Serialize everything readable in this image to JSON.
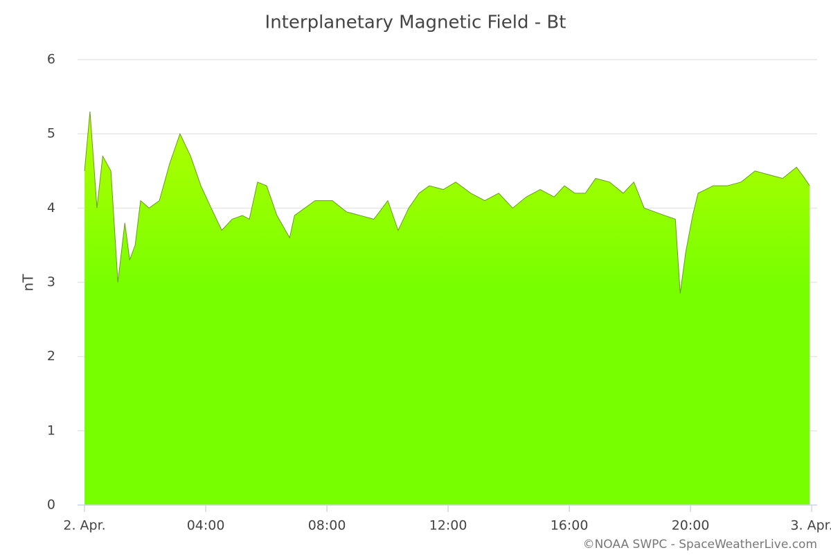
{
  "chart_data": {
    "type": "area",
    "title": "Interplanetary Magnetic Field - Bt",
    "y_label": "nT",
    "credits": "©NOAA SWPC - SpaceWeatherLive.com",
    "x": [
      0,
      0.18,
      0.41,
      0.6,
      0.87,
      1.1,
      1.33,
      1.49,
      1.67,
      1.85,
      2.13,
      2.47,
      2.81,
      3.15,
      3.5,
      3.84,
      4.18,
      4.53,
      4.87,
      5.21,
      5.44,
      5.71,
      6.01,
      6.35,
      6.77,
      6.93,
      7.27,
      7.61,
      8.18,
      8.64,
      9.1,
      9.55,
      10.01,
      10.35,
      10.7,
      11.04,
      11.38,
      11.84,
      12.25,
      12.75,
      13.21,
      13.67,
      14.13,
      14.58,
      15.04,
      15.5,
      15.84,
      16.18,
      16.53,
      16.87,
      17.33,
      17.78,
      18.13,
      18.47,
      18.81,
      19.15,
      19.5,
      19.66,
      19.84,
      20.07,
      20.25,
      20.75,
      21.21,
      21.67,
      22.13,
      22.58,
      23.04,
      23.5,
      23.77,
      23.93
    ],
    "series": [
      {
        "name": "Bt",
        "colors": [
          "#b4ff00",
          "#77ff00"
        ],
        "line_color": "#6a9a20",
        "values": [
          4.5,
          5.3,
          4.0,
          4.7,
          4.5,
          3.0,
          3.8,
          3.3,
          3.5,
          4.1,
          4.0,
          4.1,
          4.6,
          5.0,
          4.7,
          4.3,
          4.0,
          3.7,
          3.85,
          3.9,
          3.85,
          4.35,
          4.3,
          3.9,
          3.6,
          3.9,
          4.0,
          4.1,
          4.1,
          3.95,
          3.9,
          3.85,
          4.1,
          3.7,
          4.0,
          4.2,
          4.3,
          4.25,
          4.35,
          4.2,
          4.1,
          4.2,
          4.0,
          4.15,
          4.25,
          4.15,
          4.3,
          4.2,
          4.2,
          4.4,
          4.35,
          4.2,
          4.35,
          4.0,
          3.95,
          3.9,
          3.85,
          2.85,
          3.4,
          3.9,
          4.2,
          4.3,
          4.3,
          4.35,
          4.5,
          4.45,
          4.4,
          4.55,
          4.4,
          4.3
        ]
      }
    ],
    "xlim": [
      -0.23,
      24.18
    ],
    "xticks": [
      {
        "value": 0,
        "label": "2. Apr."
      },
      {
        "value": 4,
        "label": "04:00"
      },
      {
        "value": 8,
        "label": "08:00"
      },
      {
        "value": 12,
        "label": "12:00"
      },
      {
        "value": 16,
        "label": "16:00"
      },
      {
        "value": 20,
        "label": "20:00"
      },
      {
        "value": 24,
        "label": "3. Apr."
      }
    ],
    "ylim": [
      0,
      6
    ],
    "yticks": [
      0,
      1,
      2,
      3,
      4,
      5,
      6
    ],
    "grid": true
  }
}
